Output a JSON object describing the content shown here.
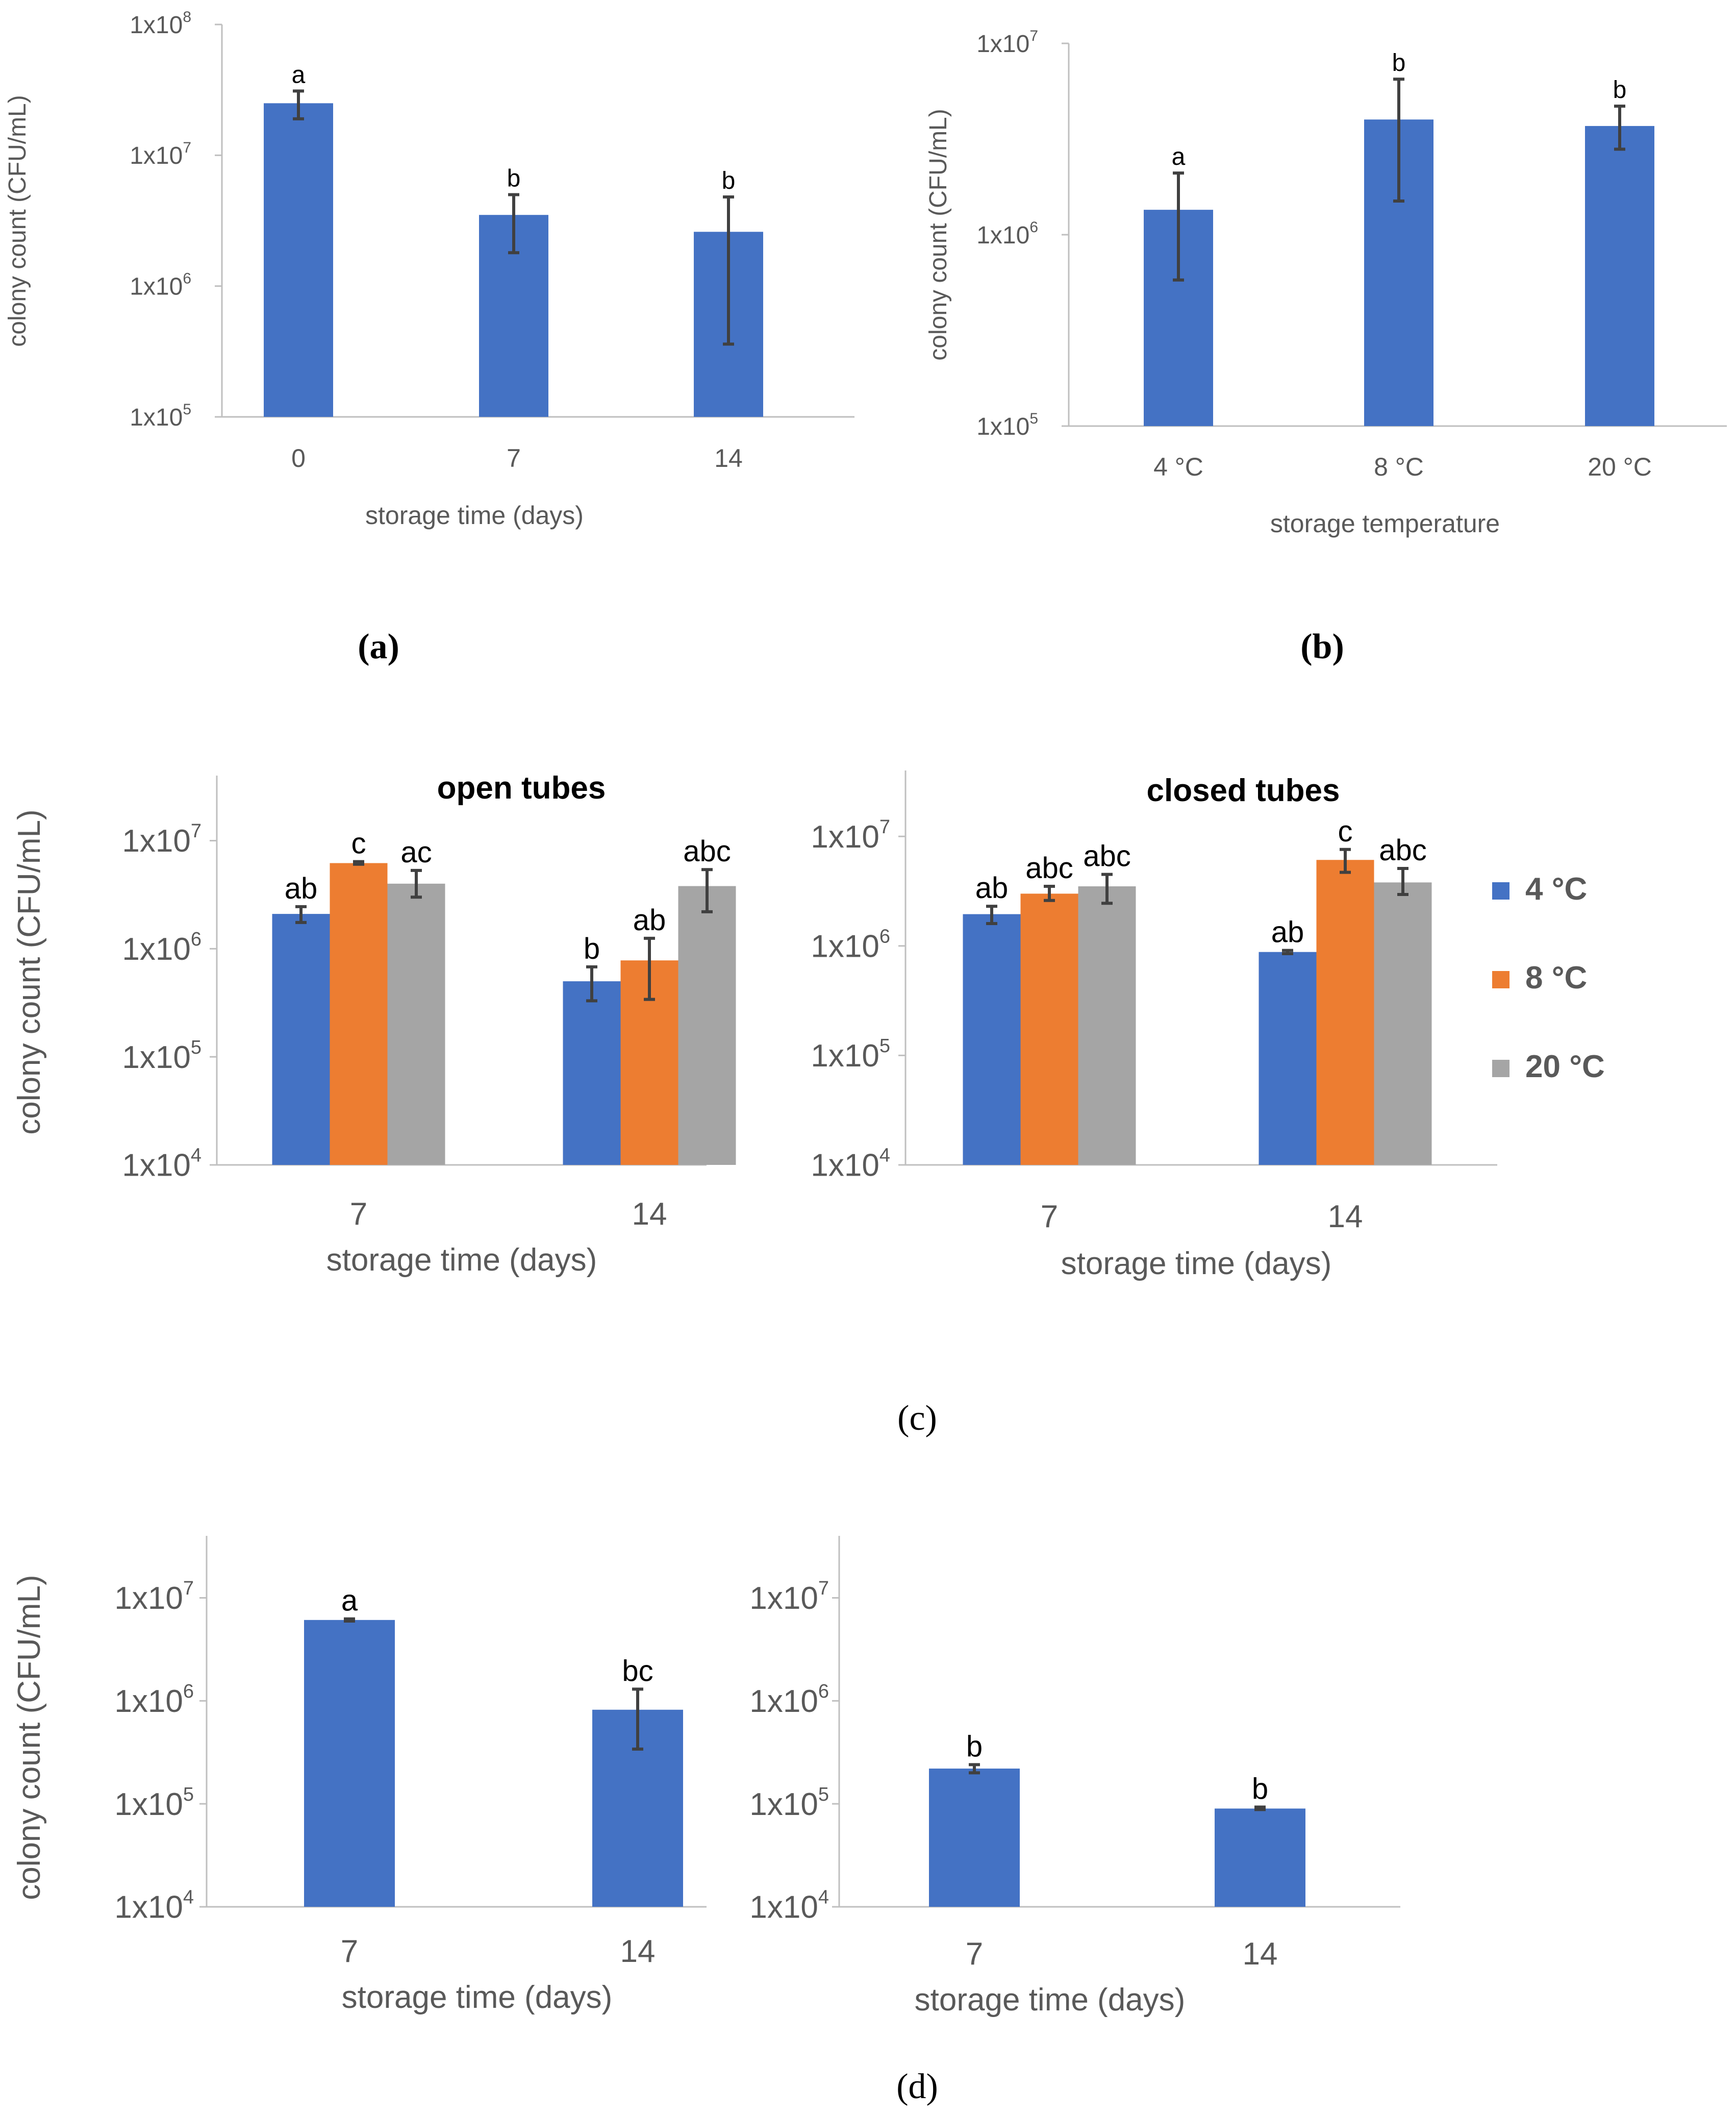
{
  "figure": {
    "captions": {
      "a": "(a)",
      "b": "(b)",
      "c": "(c)",
      "d": "(d)"
    }
  },
  "colors": {
    "blue": "#4472C4",
    "orange": "#ED7D31",
    "gray": "#A5A5A5",
    "axis": "#BFBFBF",
    "text": "#595959",
    "error": "#404040"
  },
  "chart_data": [
    {
      "id": "a",
      "type": "bar",
      "yscale": "log",
      "ylabel": "colony count (CFU/mL)",
      "xlabel": "storage time (days)",
      "ylim": [
        100000,
        100000000
      ],
      "yticks": [
        "1x10^5",
        "1x10^6",
        "1x10^7",
        "1x10^8"
      ],
      "categories": [
        "0",
        "7",
        "14"
      ],
      "series": [
        {
          "color": "blue",
          "values": [
            25000000,
            3500000,
            2600000
          ],
          "err_low": [
            19000000,
            1800000,
            360000
          ],
          "err_high": [
            31000000,
            5000000,
            4800000
          ],
          "labels": [
            "a",
            "b",
            "b"
          ]
        }
      ]
    },
    {
      "id": "b",
      "type": "bar",
      "yscale": "log",
      "ylabel": "colony count (CFU/mL)",
      "xlabel": "storage temperature",
      "ylim": [
        100000,
        10000000
      ],
      "yticks": [
        "1x10^5",
        "1x10^6",
        "1x10^7"
      ],
      "categories": [
        "4 °C",
        "8 °C",
        "20 °C"
      ],
      "series": [
        {
          "color": "blue",
          "values": [
            1350000,
            4000000,
            3700000
          ],
          "err_low": [
            580000,
            1500000,
            2800000
          ],
          "err_high": [
            2100000,
            6500000,
            4700000
          ],
          "labels": [
            "a",
            "b",
            "b"
          ]
        }
      ]
    },
    {
      "id": "c1",
      "type": "bar",
      "yscale": "log",
      "title": "open tubes",
      "ylabel": "colony count (CFU/mL)",
      "xlabel": "storage time (days)",
      "ylim": [
        10000,
        40000000
      ],
      "yticks": [
        "1x10^4",
        "1x10^5",
        "1x10^6",
        "1x10^7"
      ],
      "categories": [
        "7",
        "14"
      ],
      "series": [
        {
          "name": "4 °C",
          "color": "blue",
          "values": [
            2100000,
            500000
          ],
          "err_low": [
            1750000,
            330000
          ],
          "err_high": [
            2450000,
            680000
          ],
          "labels": [
            "ab",
            "b"
          ]
        },
        {
          "name": "8 °C",
          "color": "orange",
          "values": [
            6200000,
            780000
          ],
          "err_low": [
            6050000,
            340000
          ],
          "err_high": [
            6400000,
            1250000
          ],
          "labels": [
            "c",
            "ab"
          ]
        },
        {
          "name": "20 °C",
          "color": "gray",
          "values": [
            4000000,
            3800000
          ],
          "err_low": [
            3000000,
            2200000
          ],
          "err_high": [
            5300000,
            5400000
          ],
          "labels": [
            "ac",
            "abc"
          ]
        }
      ]
    },
    {
      "id": "c2",
      "type": "bar",
      "yscale": "log",
      "title": "closed tubes",
      "ylabel": "",
      "xlabel": "storage time (days)",
      "ylim": [
        10000,
        40000000
      ],
      "yticks": [
        "1x10^4",
        "1x10^5",
        "1x10^6",
        "1x10^7"
      ],
      "categories": [
        "7",
        "14"
      ],
      "series": [
        {
          "name": "4 °C",
          "color": "blue",
          "values": [
            1950000,
            880000
          ],
          "err_low": [
            1600000,
            850000
          ],
          "err_high": [
            2300000,
            910000
          ],
          "labels": [
            "ab",
            "ab"
          ]
        },
        {
          "name": "8 °C",
          "color": "orange",
          "values": [
            3000000,
            6100000
          ],
          "err_low": [
            2600000,
            4700000
          ],
          "err_high": [
            3500000,
            7600000
          ],
          "labels": [
            "abc",
            "c"
          ]
        },
        {
          "name": "20 °C",
          "color": "gray",
          "values": [
            3500000,
            3800000
          ],
          "err_low": [
            2450000,
            2950000
          ],
          "err_high": [
            4500000,
            5100000
          ],
          "labels": [
            "abc",
            "abc"
          ]
        }
      ],
      "legend": {
        "position": "right",
        "entries": [
          "4 °C",
          "8 °C",
          "20 °C"
        ]
      }
    },
    {
      "id": "d1",
      "type": "bar",
      "yscale": "log",
      "ylabel": "colony count (CFU/mL)",
      "xlabel": "storage time (days)",
      "ylim": [
        10000,
        40000000
      ],
      "yticks": [
        "1x10^4",
        "1x10^5",
        "1x10^6",
        "1x10^7"
      ],
      "categories": [
        "7",
        "14"
      ],
      "series": [
        {
          "color": "blue",
          "values": [
            6100000,
            820000
          ],
          "err_low": [
            5950000,
            340000
          ],
          "err_high": [
            6250000,
            1300000
          ],
          "labels": [
            "a",
            "bc"
          ]
        }
      ]
    },
    {
      "id": "d2",
      "type": "bar",
      "yscale": "log",
      "ylabel": "",
      "xlabel": "storage time (days)",
      "ylim": [
        10000,
        40000000
      ],
      "yticks": [
        "1x10^4",
        "1x10^5",
        "1x10^6",
        "1x10^7"
      ],
      "categories": [
        "7",
        "14"
      ],
      "series": [
        {
          "color": "blue",
          "values": [
            220000,
            90000
          ],
          "err_low": [
            200000,
            88000
          ],
          "err_high": [
            240000,
            93000
          ],
          "labels": [
            "b",
            "b"
          ]
        }
      ]
    }
  ]
}
